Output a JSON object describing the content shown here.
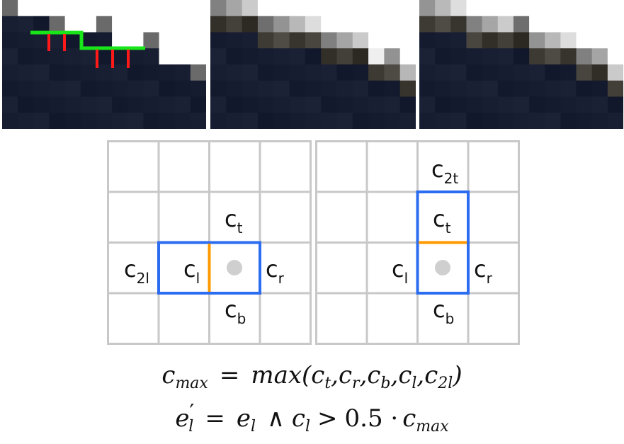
{
  "panels": [
    {
      "name": "edge-detection-panel",
      "overlay": true
    },
    {
      "name": "blend-result-panel-a",
      "overlay": false
    },
    {
      "name": "blend-result-panel-b",
      "overlay": false
    }
  ],
  "colors": {
    "dark_pixel": "#111a2e",
    "grid_line": "#c8c8c8",
    "region_outline": "#2b6cf0",
    "edge_marker": "#ff9900",
    "center_dot": "#cfcfcf",
    "green_edge": "#19e619",
    "red_edge": "#ff1a1a"
  },
  "grid_left": {
    "labels": {
      "ct": "t",
      "c2l": "2l",
      "cl": "l",
      "cr": "r",
      "cb": "b"
    },
    "letter": "c"
  },
  "grid_right": {
    "labels": {
      "c2t": "2t",
      "ct": "t",
      "cl": "l",
      "cr": "r",
      "cb": "b"
    },
    "letter": "c"
  },
  "formulas": {
    "cmax_lhs": "c",
    "cmax_lhs_sub": "max",
    "eq": "=",
    "max_fn": "max(",
    "args": [
      "t",
      "r",
      "b",
      "l",
      "2l"
    ],
    "arg_letter": "c",
    "close": ")",
    "e_lhs": "e",
    "e_prime": "′",
    "e_sub": "l",
    "and": "∧",
    "cl": "c",
    "cl_sub": "l",
    "gt": ">",
    "coef": "0.5 ·",
    "cmax2": "c",
    "cmax2_sub": "max"
  }
}
